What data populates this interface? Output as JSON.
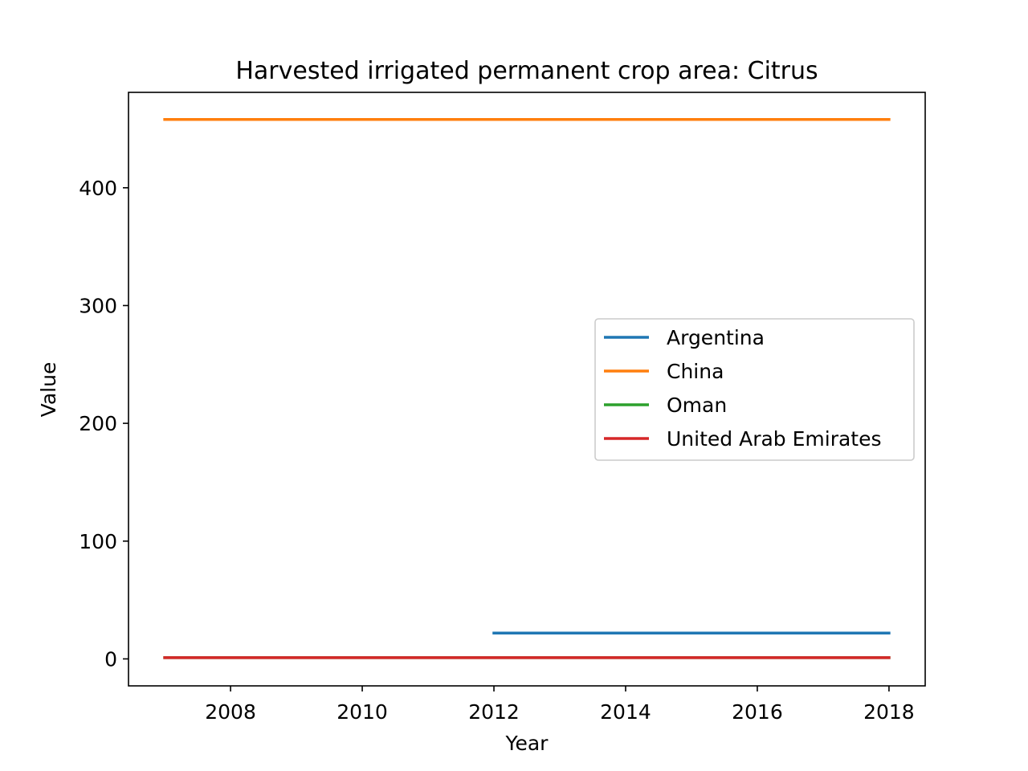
{
  "chart_data": {
    "type": "line",
    "title": "Harvested irrigated permanent crop area: Citrus",
    "xlabel": "Year",
    "ylabel": "Value",
    "xlim": [
      2006.45,
      2018.55
    ],
    "ylim": [
      -22.9,
      481.0
    ],
    "xticks": [
      2008,
      2010,
      2012,
      2014,
      2016,
      2018
    ],
    "yticks": [
      0,
      100,
      200,
      300,
      400
    ],
    "grid": false,
    "legend_position": "center-right",
    "series": [
      {
        "name": "Argentina",
        "color": "#1f77b4",
        "x": [
          2012,
          2018
        ],
        "y": [
          22,
          22
        ]
      },
      {
        "name": "China",
        "color": "#ff7f0e",
        "x": [
          2007,
          2018
        ],
        "y": [
          458,
          458
        ]
      },
      {
        "name": "Oman",
        "color": "#2ca02c",
        "x": [
          2007,
          2018
        ],
        "y": [
          1,
          1
        ]
      },
      {
        "name": "United Arab Emirates",
        "color": "#d62728",
        "x": [
          2007,
          2018
        ],
        "y": [
          1,
          1
        ]
      }
    ]
  }
}
